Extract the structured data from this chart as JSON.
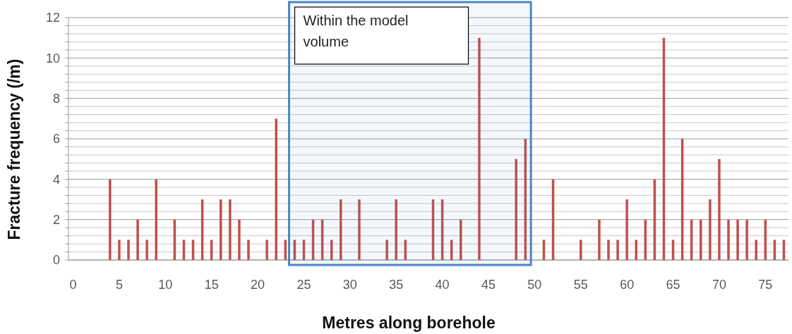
{
  "chart_data": {
    "type": "bar",
    "xlabel": "Metres along borehole",
    "ylabel": "Fracture frequency (/m)",
    "x": [
      0,
      1,
      2,
      3,
      4,
      5,
      6,
      7,
      8,
      9,
      10,
      11,
      12,
      13,
      14,
      15,
      16,
      17,
      18,
      19,
      20,
      21,
      22,
      23,
      24,
      25,
      26,
      27,
      28,
      29,
      30,
      31,
      32,
      33,
      34,
      35,
      36,
      37,
      38,
      39,
      40,
      41,
      42,
      43,
      44,
      45,
      46,
      47,
      48,
      49,
      50,
      51,
      52,
      53,
      54,
      55,
      56,
      57,
      58,
      59,
      60,
      61,
      62,
      63,
      64,
      65,
      66,
      67,
      68,
      69,
      70,
      71,
      72,
      73,
      74,
      75,
      76,
      77
    ],
    "values": [
      0,
      0,
      0,
      0,
      4,
      1,
      1,
      2,
      1,
      4,
      0,
      2,
      1,
      1,
      3,
      1,
      3,
      3,
      2,
      1,
      0,
      1,
      7,
      1,
      1,
      1,
      2,
      2,
      1,
      3,
      0,
      3,
      0,
      0,
      1,
      3,
      1,
      0,
      0,
      3,
      3,
      1,
      2,
      0,
      11,
      0,
      0,
      0,
      5,
      6,
      0,
      1,
      4,
      0,
      0,
      1,
      0,
      2,
      1,
      1,
      3,
      1,
      2,
      4,
      11,
      1,
      6,
      2,
      2,
      3,
      5,
      2,
      2,
      2,
      1,
      2,
      1,
      1
    ],
    "color": "#c0504d",
    "xlim": [
      -0.5,
      77.5
    ],
    "xticks": [
      0,
      5,
      10,
      15,
      20,
      25,
      30,
      35,
      40,
      45,
      50,
      55,
      60,
      65,
      70,
      75
    ],
    "ylim": [
      0,
      12
    ],
    "yticks": [
      0,
      {
        "value": 0.4,
        "label": null
      },
      {
        "value": 0.8,
        "label": null
      },
      {
        "value": 1.2,
        "label": null
      },
      {
        "value": 1.6,
        "label": null
      },
      2,
      {
        "value": 2.4,
        "label": null
      },
      {
        "value": 2.8,
        "label": null
      },
      {
        "value": 3.2,
        "label": null
      },
      {
        "value": 3.6,
        "label": null
      },
      4,
      {
        "value": 4.4,
        "label": null
      },
      {
        "value": 4.8,
        "label": null
      },
      {
        "value": 5.2,
        "label": null
      },
      {
        "value": 5.6,
        "label": null
      },
      6,
      {
        "value": 6.4,
        "label": null
      },
      {
        "value": 6.8,
        "label": null
      },
      {
        "value": 7.2,
        "label": null
      },
      {
        "value": 7.6,
        "label": null
      },
      8,
      {
        "value": 8.4,
        "label": null
      },
      {
        "value": 8.8,
        "label": null
      },
      {
        "value": 9.2,
        "label": null
      },
      {
        "value": 9.6,
        "label": null
      },
      10,
      {
        "value": 10.4,
        "label": null
      },
      {
        "value": 10.8,
        "label": null
      },
      {
        "value": 11.2,
        "label": null
      },
      {
        "value": 11.6,
        "label": null
      },
      12
    ],
    "grid": "y",
    "bands": [
      {
        "axis": "x",
        "from": 23.4,
        "to": 49.6,
        "label": "Within the model volume",
        "color": "#4a86c8"
      }
    ]
  }
}
